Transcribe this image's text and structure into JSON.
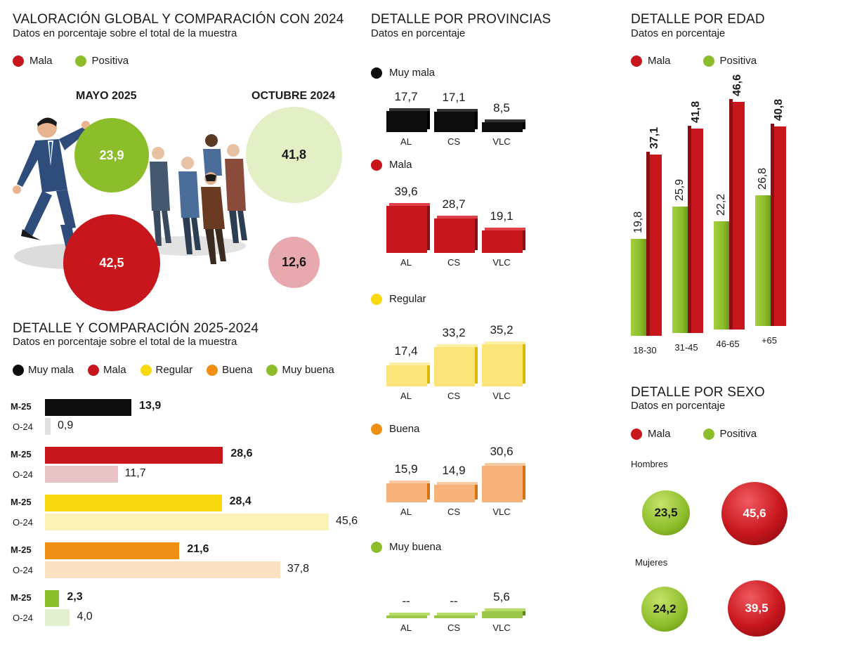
{
  "colors": {
    "muy_mala": "#0d0d0d",
    "mala": "#c8161d",
    "regular": "#f8d80e",
    "buena": "#ef8f14",
    "muy_buena": "#8cbd2a",
    "mala_light": "#e8c3c6",
    "regular_light": "#fbf2b6",
    "buena_light": "#fbe0c2",
    "muy_buena_light": "#e3efd0",
    "muy_mala_light": "#e0e0e0",
    "positiva_light": "#e3efc4",
    "mala_pale": "#e7a8ae"
  },
  "global": {
    "title": "VALORACIÓN GLOBAL Y COMPARACIÓN CON 2024",
    "subtitle": "Datos en porcentaje sobre el total de la muestra",
    "legend": [
      "Mala",
      "Positiva"
    ],
    "may_label": "MAYO 2025",
    "oct_label": "OCTUBRE 2024",
    "may": {
      "positiva": "23,9",
      "mala": "42,5"
    },
    "oct": {
      "positiva": "41,8",
      "mala": "12,6"
    }
  },
  "detalle": {
    "title": "DETALLE Y COMPARACIÓN 2025-2024",
    "subtitle": "Datos en porcentaje sobre el total de la muestra",
    "legend": [
      "Muy mala",
      "Mala",
      "Regular",
      "Buena",
      "Muy buena"
    ],
    "row_m": "M-25",
    "row_o": "O-24"
  },
  "provincias": {
    "title": "DETALLE POR PROVINCIAS",
    "subtitle": "Datos en porcentaje",
    "labels": [
      "AL",
      "CS",
      "VLC"
    ],
    "groups": [
      "Muy mala",
      "Mala",
      "Regular",
      "Buena",
      "Muy buena"
    ]
  },
  "edad": {
    "title": "DETALLE POR EDAD",
    "subtitle": "Datos en porcentaje",
    "legend": [
      "Mala",
      "Positiva"
    ]
  },
  "sexo": {
    "title": "DETALLE POR SEXO",
    "subtitle": "Datos en porcentaje",
    "legend": [
      "Mala",
      "Positiva"
    ],
    "hombres": "Hombres",
    "mujeres": "Mujeres",
    "h_pos": "23,5",
    "h_mala": "45,6",
    "m_pos": "24,2",
    "m_mala": "39,5"
  },
  "chart_data": [
    {
      "type": "bar",
      "title": "DETALLE Y COMPARACIÓN 2025-2024",
      "categories": [
        "Muy mala",
        "Mala",
        "Regular",
        "Buena",
        "Muy buena"
      ],
      "series": [
        {
          "name": "M-25",
          "values": [
            13.9,
            28.6,
            28.4,
            21.6,
            2.3
          ],
          "labels": [
            "13,9",
            "28,6",
            "28,4",
            "21,6",
            "2,3"
          ]
        },
        {
          "name": "O-24",
          "values": [
            0.9,
            11.7,
            45.6,
            37.8,
            4.0
          ],
          "labels": [
            "0,9",
            "11,7",
            "45,6",
            "37,8",
            "4,0"
          ]
        }
      ]
    },
    {
      "type": "bar",
      "title": "DETALLE POR PROVINCIAS",
      "categories": [
        "AL",
        "CS",
        "VLC"
      ],
      "series": [
        {
          "name": "Muy mala",
          "values": [
            17.7,
            17.1,
            8.5
          ],
          "labels": [
            "17,7",
            "17,1",
            "8,5"
          ]
        },
        {
          "name": "Mala",
          "values": [
            39.6,
            28.7,
            19.1
          ],
          "labels": [
            "39,6",
            "28,7",
            "19,1"
          ]
        },
        {
          "name": "Regular",
          "values": [
            17.4,
            33.2,
            35.2
          ],
          "labels": [
            "17,4",
            "33,2",
            "35,2"
          ]
        },
        {
          "name": "Buena",
          "values": [
            15.9,
            14.9,
            30.6
          ],
          "labels": [
            "15,9",
            "14,9",
            "30,6"
          ]
        },
        {
          "name": "Muy buena",
          "values": [
            0,
            0,
            5.6
          ],
          "labels": [
            "--",
            "--",
            "5,6"
          ]
        }
      ]
    },
    {
      "type": "bar",
      "title": "DETALLE POR EDAD",
      "categories": [
        "18-30",
        "31-45",
        "46-65",
        "+65"
      ],
      "series": [
        {
          "name": "Positiva",
          "values": [
            19.8,
            25.9,
            22.2,
            26.8
          ],
          "labels": [
            "19,8",
            "25,9",
            "22,2",
            "26,8"
          ]
        },
        {
          "name": "Mala",
          "values": [
            37.1,
            41.8,
            46.6,
            40.8
          ],
          "labels": [
            "37,1",
            "41,8",
            "46,6",
            "40,8"
          ]
        }
      ]
    }
  ]
}
